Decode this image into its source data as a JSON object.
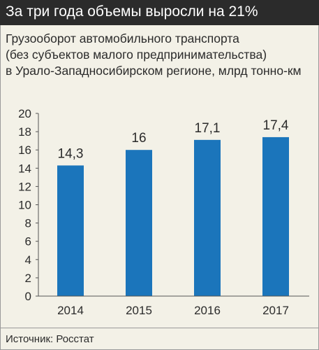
{
  "header": {
    "title": "За три года объемы выросли на 21%"
  },
  "subtitle": {
    "lines": [
      "Грузооборот автомобильного транспорта",
      "(без субъектов малого предпринимательства)",
      "в Урало-Западносибирском регионе, млрд тонно-км"
    ]
  },
  "source": "Источник: Росстат",
  "colors": {
    "bar": "#1b75bb",
    "header_bg": "#2b2b2b",
    "panel_bg": "#f3f1e7",
    "text": "#2b2b2b"
  },
  "chart_data": {
    "type": "bar",
    "categories": [
      "2014",
      "2015",
      "2016",
      "2017"
    ],
    "values": [
      14.3,
      16,
      17.1,
      17.4
    ],
    "value_labels": [
      "14,3",
      "16",
      "17,1",
      "17,4"
    ],
    "ylim": [
      0,
      20
    ],
    "yticks": [
      0,
      2,
      4,
      6,
      8,
      10,
      12,
      14,
      16,
      18,
      20
    ],
    "grid": false,
    "title": "За три года объемы выросли на 21%",
    "xlabel": "",
    "ylabel": ""
  }
}
